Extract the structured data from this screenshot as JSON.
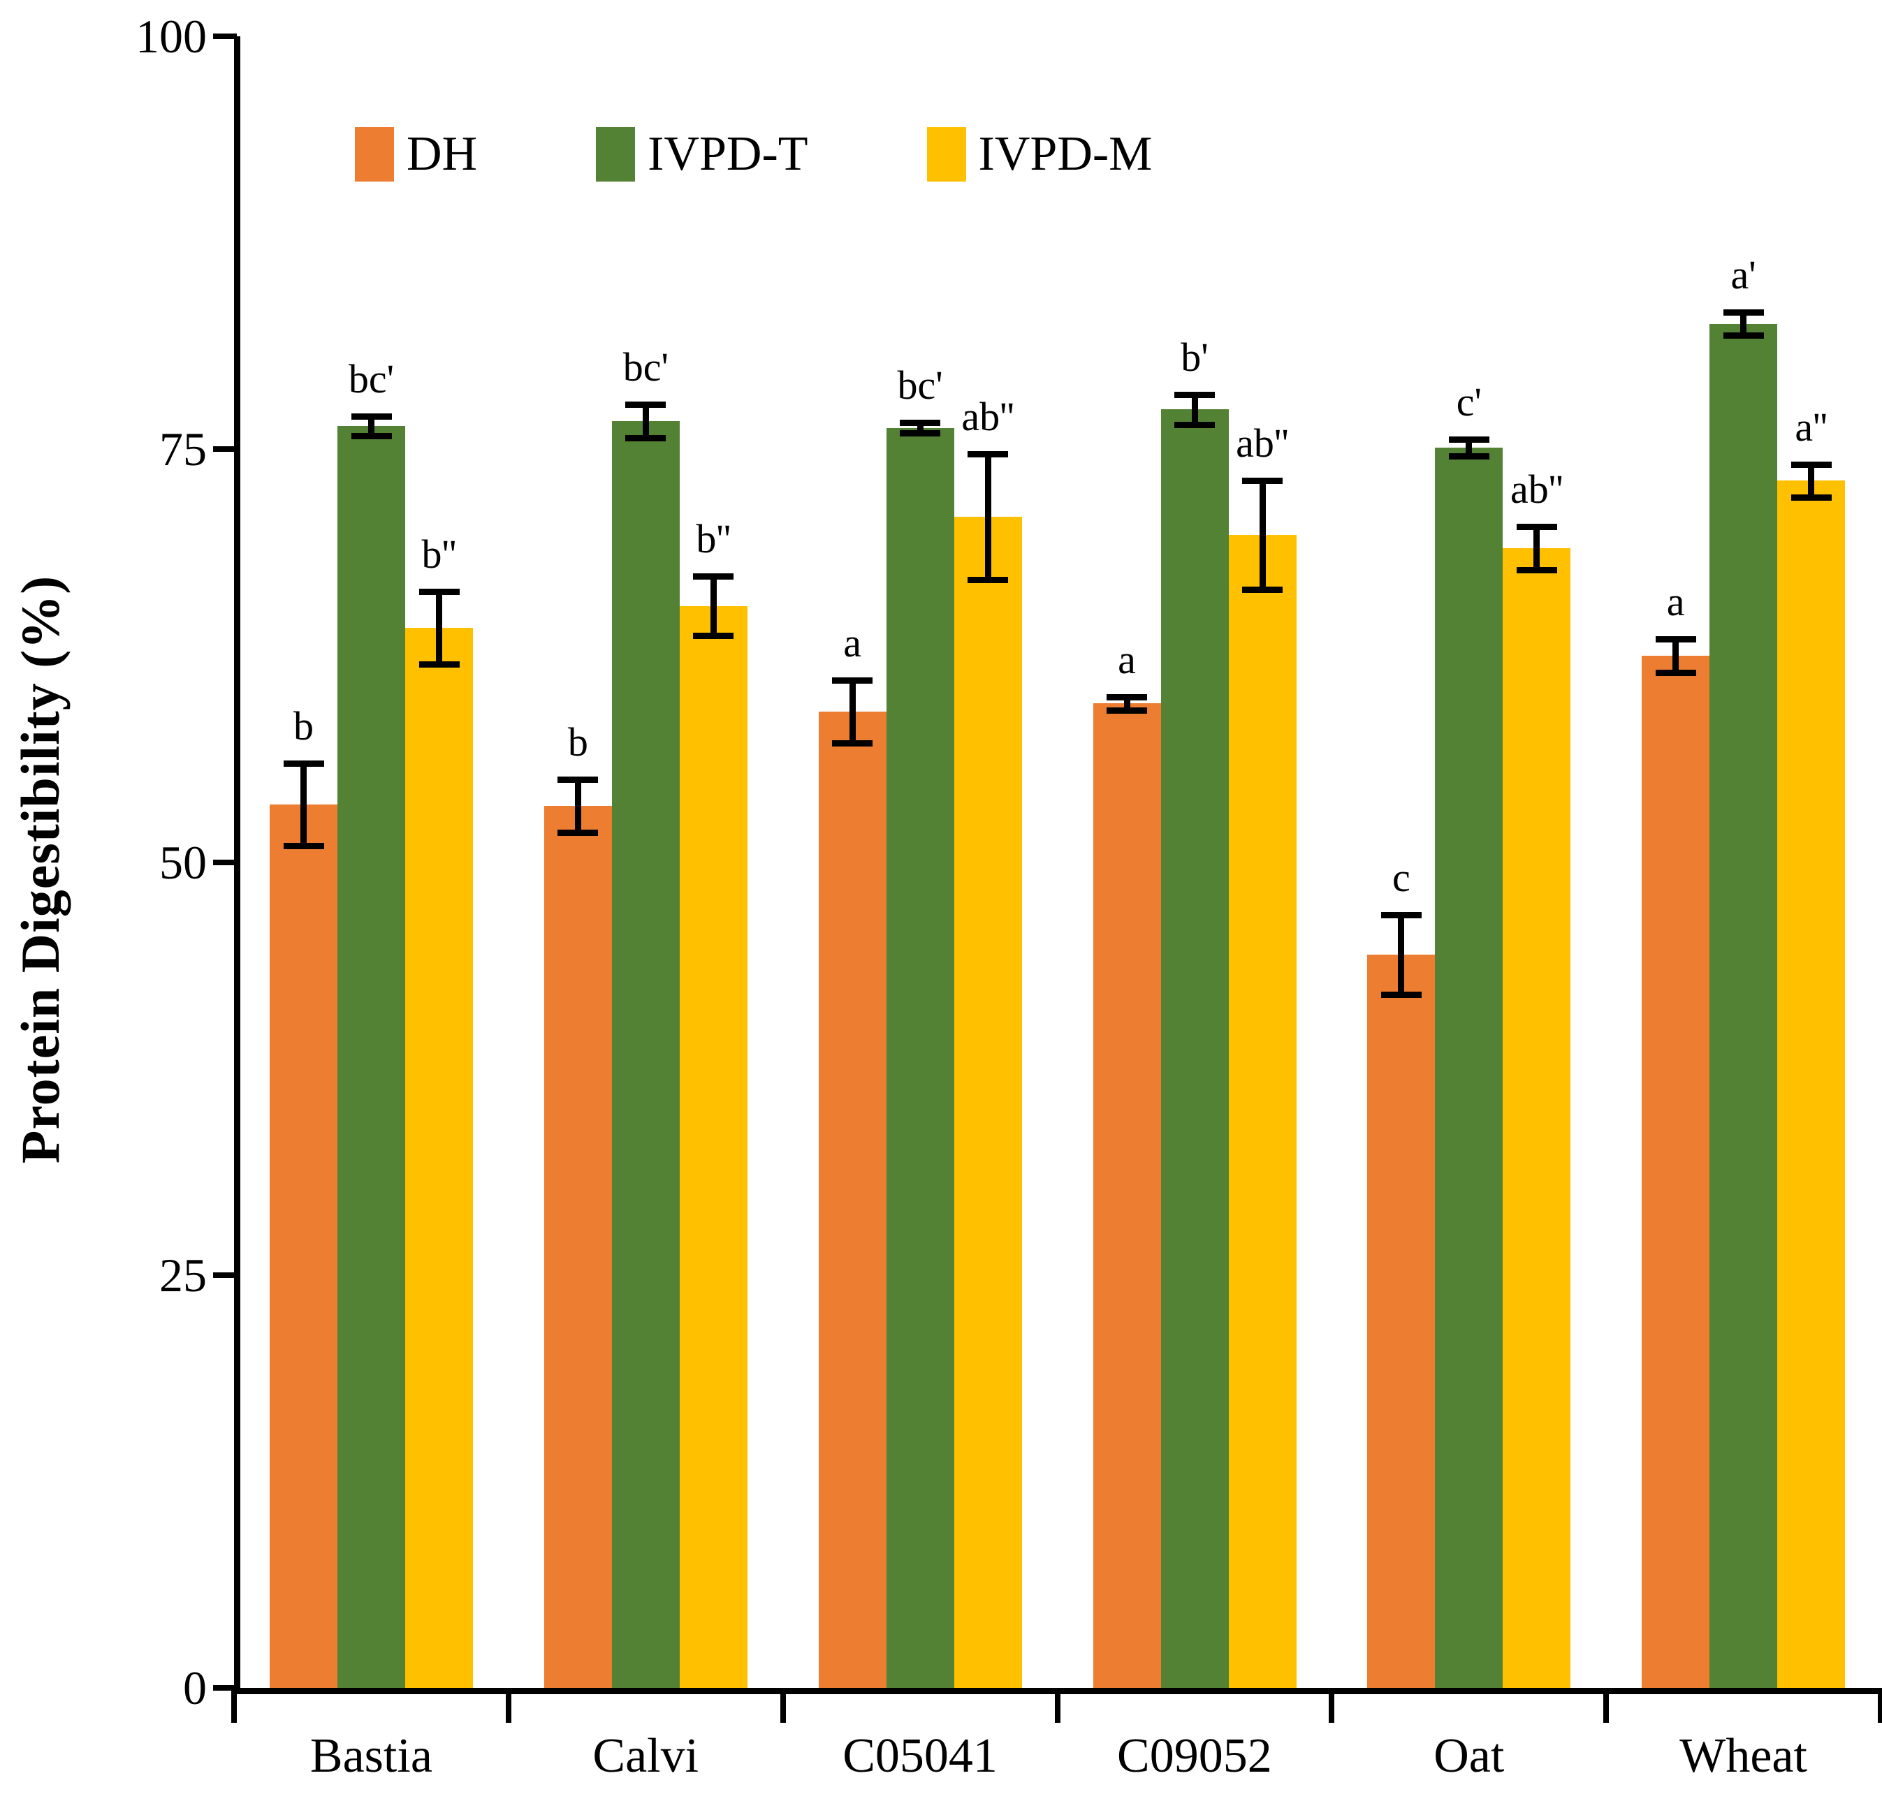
{
  "figure": {
    "y_axis_title": "Protein Digestibility (%)"
  },
  "chart_data": {
    "type": "bar",
    "title": "",
    "xlabel": "",
    "ylabel": "Protein Digestibility (%)",
    "ylim": [
      0,
      100
    ],
    "y_ticks": [
      0,
      25,
      50,
      75,
      100
    ],
    "y_tick_labels": [
      "0",
      "25",
      "50",
      "75",
      "100"
    ],
    "grid": false,
    "legend_position": "top-left-inside",
    "categories": [
      "Bastia",
      "Calvi",
      "C05041",
      "C09052",
      "Oat",
      "Wheat"
    ],
    "series": [
      {
        "name": "DH",
        "color": "#ED7D31",
        "values": [
          53.5,
          53.4,
          59.1,
          59.6,
          44.4,
          62.5
        ],
        "errors": [
          2.5,
          1.6,
          1.9,
          0.4,
          2.4,
          1.0
        ],
        "sig_labels": [
          "b",
          "b",
          "a",
          "a",
          "c",
          "a"
        ]
      },
      {
        "name": "IVPD-T",
        "color": "#548235",
        "values": [
          76.4,
          76.7,
          76.3,
          77.4,
          75.1,
          82.6
        ],
        "errors": [
          0.6,
          1.0,
          0.3,
          0.9,
          0.5,
          0.7
        ],
        "sig_labels": [
          "bc'",
          "bc'",
          "bc'",
          "b'",
          "c'",
          "a'"
        ]
      },
      {
        "name": "IVPD-M",
        "color": "#FFC000",
        "values": [
          64.2,
          65.5,
          70.9,
          69.8,
          69.0,
          73.1
        ],
        "errors": [
          2.2,
          1.8,
          3.8,
          3.3,
          1.3,
          1.0
        ],
        "sig_labels": [
          "b''",
          "b''",
          "ab''",
          "ab''",
          "ab''",
          "a''"
        ]
      }
    ]
  }
}
